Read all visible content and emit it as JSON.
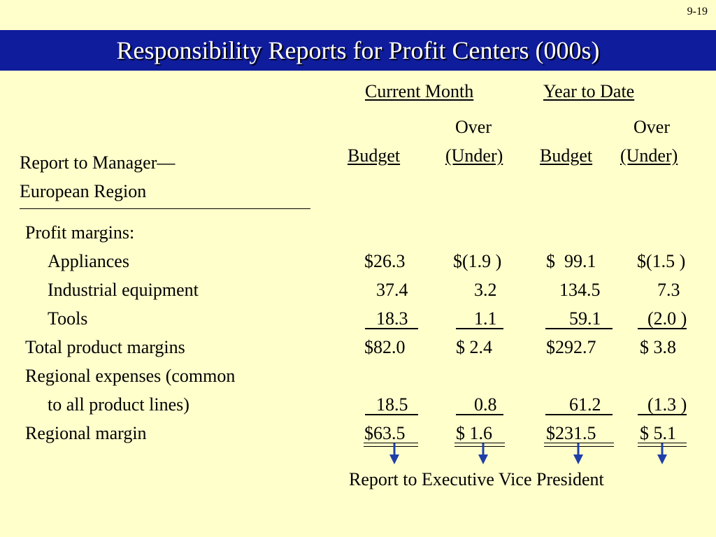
{
  "slide_number": "9-19",
  "title": "Responsibility Reports for Profit Centers (000s)",
  "columns": {
    "group1": "Current Month",
    "group2": "Year to Date",
    "over": "Over",
    "budget": "Budget",
    "under": "(Under)"
  },
  "report_label": {
    "line1": "Report to Manager—",
    "line2": "European Region"
  },
  "rows": {
    "profit_margins": "Profit margins:",
    "appliances": {
      "label": "Appliances",
      "cm_budget": "$26.3",
      "cm_over": "$(1.9 )",
      "ytd_budget": "$  99.1",
      "ytd_over": "$(1.5 )"
    },
    "industrial": {
      "label": "Industrial equipment",
      "cm_budget": "37.4",
      "cm_over": "3.2",
      "ytd_budget": "134.5",
      "ytd_over": "7.3"
    },
    "tools": {
      "label": "Tools",
      "cm_budget": "18.3",
      "cm_over": "1.1",
      "ytd_budget": "59.1",
      "ytd_over": "(2.0 )"
    },
    "total": {
      "label": "Total product margins",
      "cm_budget": "$82.0",
      "cm_over": "$ 2.4",
      "ytd_budget": "$292.7",
      "ytd_over": "$ 3.8"
    },
    "regional_expenses_1": "Regional expenses (common",
    "regional_expenses_2": {
      "label": "to all product lines)",
      "cm_budget": "18.5",
      "cm_over": "0.8",
      "ytd_budget": "61.2",
      "ytd_over": "(1.3 )"
    },
    "regional_margin": {
      "label": "Regional margin",
      "cm_budget": "$63.5",
      "cm_over": "$ 1.6",
      "ytd_budget": "$231.5",
      "ytd_over": "$ 5.1"
    }
  },
  "footer_note": "Report to Executive Vice President",
  "colors": {
    "title_bar": "#0F1C9C",
    "background": "#FFFFCC",
    "arrow": "#1F3FA8"
  }
}
